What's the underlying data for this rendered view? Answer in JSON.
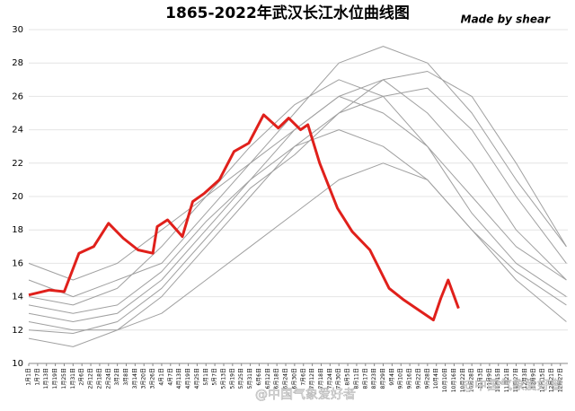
{
  "chart_data": {
    "type": "line",
    "title": "1865-2022年武汉长江水位曲线图",
    "annotation": "Made by shear",
    "watermark": "@中国气象爱好者",
    "xlim": [
      1,
      366
    ],
    "ylim": [
      10,
      30
    ],
    "yticks": [
      10,
      12,
      14,
      16,
      18,
      20,
      22,
      24,
      26,
      28,
      30
    ],
    "grid": true,
    "xticks": [
      {
        "value": 1,
        "label": "1月1日"
      },
      {
        "value": 7,
        "label": "1月7日"
      },
      {
        "value": 13,
        "label": "1月13日"
      },
      {
        "value": 19,
        "label": "1月19日"
      },
      {
        "value": 25,
        "label": "1月25日"
      },
      {
        "value": 31,
        "label": "1月31日"
      },
      {
        "value": 37,
        "label": "2月6日"
      },
      {
        "value": 43,
        "label": "2月12日"
      },
      {
        "value": 49,
        "label": "2月18日"
      },
      {
        "value": 55,
        "label": "2月24日"
      },
      {
        "value": 61,
        "label": "3月2日"
      },
      {
        "value": 67,
        "label": "3月8日"
      },
      {
        "value": 73,
        "label": "3月14日"
      },
      {
        "value": 79,
        "label": "3月20日"
      },
      {
        "value": 85,
        "label": "3月26日"
      },
      {
        "value": 91,
        "label": "4月1日"
      },
      {
        "value": 97,
        "label": "4月7日"
      },
      {
        "value": 103,
        "label": "4月13日"
      },
      {
        "value": 109,
        "label": "4月19日"
      },
      {
        "value": 115,
        "label": "4月25日"
      },
      {
        "value": 121,
        "label": "5月1日"
      },
      {
        "value": 127,
        "label": "5月7日"
      },
      {
        "value": 133,
        "label": "5月13日"
      },
      {
        "value": 139,
        "label": "5月19日"
      },
      {
        "value": 145,
        "label": "5月25日"
      },
      {
        "value": 151,
        "label": "5月31日"
      },
      {
        "value": 157,
        "label": "6月6日"
      },
      {
        "value": 163,
        "label": "6月12日"
      },
      {
        "value": 169,
        "label": "6月18日"
      },
      {
        "value": 175,
        "label": "6月24日"
      },
      {
        "value": 181,
        "label": "6月30日"
      },
      {
        "value": 187,
        "label": "7月6日"
      },
      {
        "value": 193,
        "label": "7月12日"
      },
      {
        "value": 199,
        "label": "7月18日"
      },
      {
        "value": 205,
        "label": "7月24日"
      },
      {
        "value": 211,
        "label": "7月30日"
      },
      {
        "value": 217,
        "label": "8月5日"
      },
      {
        "value": 223,
        "label": "8月11日"
      },
      {
        "value": 229,
        "label": "8月17日"
      },
      {
        "value": 235,
        "label": "8月23日"
      },
      {
        "value": 241,
        "label": "8月29日"
      },
      {
        "value": 247,
        "label": "9月4日"
      },
      {
        "value": 253,
        "label": "9月10日"
      },
      {
        "value": 259,
        "label": "9月16日"
      },
      {
        "value": 265,
        "label": "9月22日"
      },
      {
        "value": 271,
        "label": "9月28日"
      },
      {
        "value": 277,
        "label": "10月4日"
      },
      {
        "value": 283,
        "label": "10月10日"
      },
      {
        "value": 289,
        "label": "10月16日"
      },
      {
        "value": 295,
        "label": "10月22日"
      },
      {
        "value": 301,
        "label": "10月28日"
      },
      {
        "value": 307,
        "label": "11月3日"
      },
      {
        "value": 313,
        "label": "11月9日"
      },
      {
        "value": 319,
        "label": "11月15日"
      },
      {
        "value": 325,
        "label": "11月21日"
      },
      {
        "value": 331,
        "label": "11月27日"
      },
      {
        "value": 337,
        "label": "12月3日"
      },
      {
        "value": 343,
        "label": "12月9日"
      },
      {
        "value": 349,
        "label": "12月15日"
      },
      {
        "value": 355,
        "label": "12月21日"
      },
      {
        "value": 361,
        "label": "12月27日"
      }
    ],
    "series": [
      {
        "color": "#a0a0a0",
        "width": 1,
        "x": [
          1,
          31,
          61,
          91,
          121,
          151,
          181,
          211,
          241,
          271,
          301,
          331,
          365
        ],
        "values": [
          13,
          12.5,
          13,
          15,
          18,
          21,
          24,
          26,
          27,
          25,
          22,
          18,
          15
        ]
      },
      {
        "color": "#a0a0a0",
        "width": 1,
        "x": [
          1,
          31,
          61,
          91,
          121,
          151,
          181,
          211,
          241,
          271,
          301,
          331,
          365
        ],
        "values": [
          14,
          13.5,
          14.5,
          17,
          20,
          23,
          25.5,
          27,
          26,
          23,
          19,
          16,
          14
        ]
      },
      {
        "color": "#a0a0a0",
        "width": 1,
        "x": [
          1,
          31,
          61,
          91,
          121,
          151,
          181,
          211,
          241,
          271,
          301,
          331,
          365
        ],
        "values": [
          12.5,
          12,
          12,
          14,
          17,
          20,
          23,
          25,
          26,
          26.5,
          24,
          20,
          16
        ]
      },
      {
        "color": "#a0a0a0",
        "width": 1,
        "x": [
          1,
          31,
          61,
          91,
          121,
          151,
          181,
          211,
          241,
          271,
          301,
          331,
          365
        ],
        "values": [
          15,
          14,
          15,
          16,
          19,
          22,
          25,
          28,
          29,
          28,
          25,
          21,
          17
        ]
      },
      {
        "color": "#a0a0a0",
        "width": 1,
        "x": [
          1,
          31,
          61,
          91,
          121,
          151,
          181,
          211,
          241,
          271,
          301,
          331,
          365
        ],
        "values": [
          13.5,
          13,
          13.5,
          15.5,
          18.5,
          21,
          23,
          24,
          23,
          21,
          18,
          15.5,
          13.5
        ]
      },
      {
        "color": "#a0a0a0",
        "width": 1,
        "x": [
          1,
          31,
          61,
          91,
          121,
          151,
          181,
          211,
          241,
          271,
          301,
          331,
          365
        ],
        "values": [
          12,
          11.8,
          12.5,
          14.5,
          17.5,
          20.5,
          22.5,
          25,
          27,
          27.5,
          26,
          22,
          17
        ]
      },
      {
        "color": "#a0a0a0",
        "width": 1,
        "x": [
          1,
          31,
          61,
          91,
          121,
          151,
          181,
          211,
          241,
          271,
          301,
          331,
          365
        ],
        "values": [
          16,
          15,
          16,
          18,
          20,
          22,
          24,
          26,
          25,
          23,
          20,
          17,
          15
        ]
      },
      {
        "color": "#a0a0a0",
        "width": 1,
        "x": [
          1,
          31,
          61,
          91,
          121,
          151,
          181,
          211,
          241,
          271,
          301,
          331,
          365
        ],
        "values": [
          11.5,
          11,
          12,
          13,
          15,
          17,
          19,
          21,
          22,
          21,
          18,
          15,
          12.5
        ]
      },
      {
        "color": "#e0201b",
        "width": 3,
        "x": [
          1,
          15,
          25,
          35,
          45,
          55,
          65,
          75,
          85,
          88,
          95,
          105,
          112,
          120,
          130,
          140,
          150,
          160,
          170,
          177,
          185,
          190,
          198,
          210,
          220,
          232,
          245,
          255,
          265,
          275,
          280,
          285,
          292
        ],
        "values": [
          14.1,
          14.4,
          14.3,
          16.6,
          17.0,
          18.4,
          17.5,
          16.8,
          16.6,
          18.2,
          18.6,
          17.6,
          19.7,
          20.2,
          21.0,
          22.7,
          23.2,
          24.9,
          24.1,
          24.7,
          24.0,
          24.3,
          22.0,
          19.3,
          17.9,
          16.8,
          14.5,
          13.8,
          13.2,
          12.6,
          13.9,
          15.0,
          13.3
        ]
      }
    ]
  }
}
